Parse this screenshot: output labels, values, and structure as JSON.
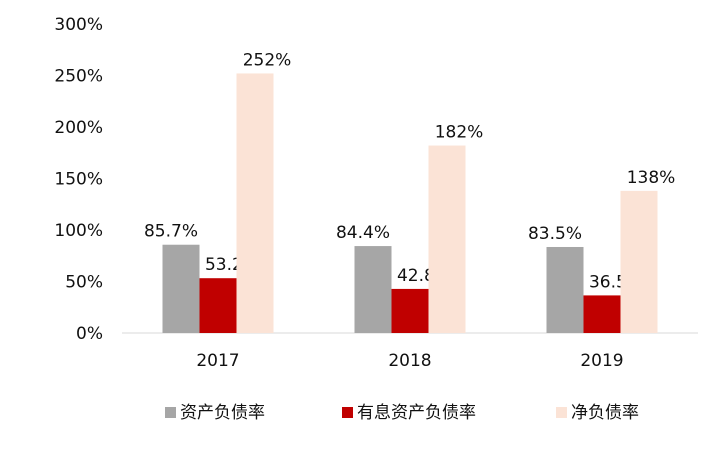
{
  "chart_data": {
    "type": "bar",
    "categories": [
      "2017",
      "2018",
      "2019"
    ],
    "series": [
      {
        "name": "资产负债率",
        "values": [
          85.7,
          84.4,
          83.5
        ],
        "labels": [
          "85.7%",
          "84.4%",
          "83.5%"
        ],
        "color": "#a6a6a6"
      },
      {
        "name": "有息资产负债率",
        "values": [
          53.2,
          42.8,
          36.5
        ],
        "labels": [
          "53.2%",
          "42.8%",
          "36.5%"
        ],
        "color": "#c00000"
      },
      {
        "name": "净负债率",
        "values": [
          252,
          182,
          138
        ],
        "labels": [
          "252%",
          "182%",
          "138%"
        ],
        "color": "#fbe3d6"
      }
    ],
    "ylim": [
      0,
      300
    ],
    "yticks": [
      0,
      50,
      100,
      150,
      200,
      250,
      300
    ],
    "ytick_labels": [
      "0%",
      "50%",
      "100%",
      "150%",
      "200%",
      "250%",
      "300%"
    ],
    "grid": false,
    "legend_position": "bottom",
    "title": "",
    "xlabel": "",
    "ylabel": ""
  }
}
